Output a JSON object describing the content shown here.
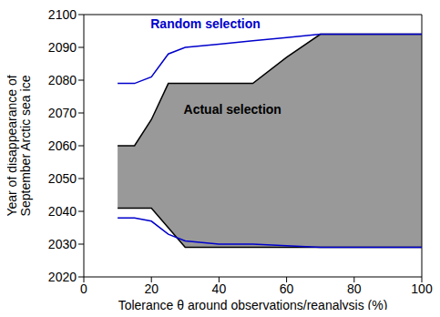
{
  "chart_data": {
    "type": "area",
    "x_label": "Tolerance θ around observations/reanalysis (%)",
    "y_label": "Year of disappearance of\nSeptember Arctic sea ice",
    "x": [
      10,
      15,
      20,
      25,
      30,
      40,
      50,
      60,
      70,
      80,
      90,
      100
    ],
    "xlim": [
      0,
      100
    ],
    "xticks": [
      0,
      20,
      40,
      60,
      80,
      100
    ],
    "ylim": [
      2020,
      2100
    ],
    "yticks": [
      2020,
      2030,
      2040,
      2050,
      2060,
      2070,
      2080,
      2090,
      2100
    ],
    "series": [
      {
        "name": "Actual selection",
        "type": "area",
        "color": "#999999",
        "lower": [
          2041,
          2041,
          2041,
          2035,
          2029,
          2029,
          2029,
          2029,
          2029,
          2029,
          2029,
          2029
        ],
        "upper": [
          2060,
          2060,
          2068,
          2079,
          2079,
          2079,
          2079,
          2087,
          2094,
          2094,
          2094,
          2094
        ]
      },
      {
        "name": "Random selection",
        "type": "line",
        "color": "#0000cc",
        "lower": [
          2038,
          2038,
          2037,
          2033,
          2031,
          2030,
          2030,
          2029.5,
          2029,
          2029,
          2029,
          2029
        ],
        "upper": [
          2079,
          2079,
          2081,
          2088,
          2090,
          2091,
          2092,
          2093,
          2094,
          2094,
          2094,
          2094
        ]
      }
    ]
  }
}
